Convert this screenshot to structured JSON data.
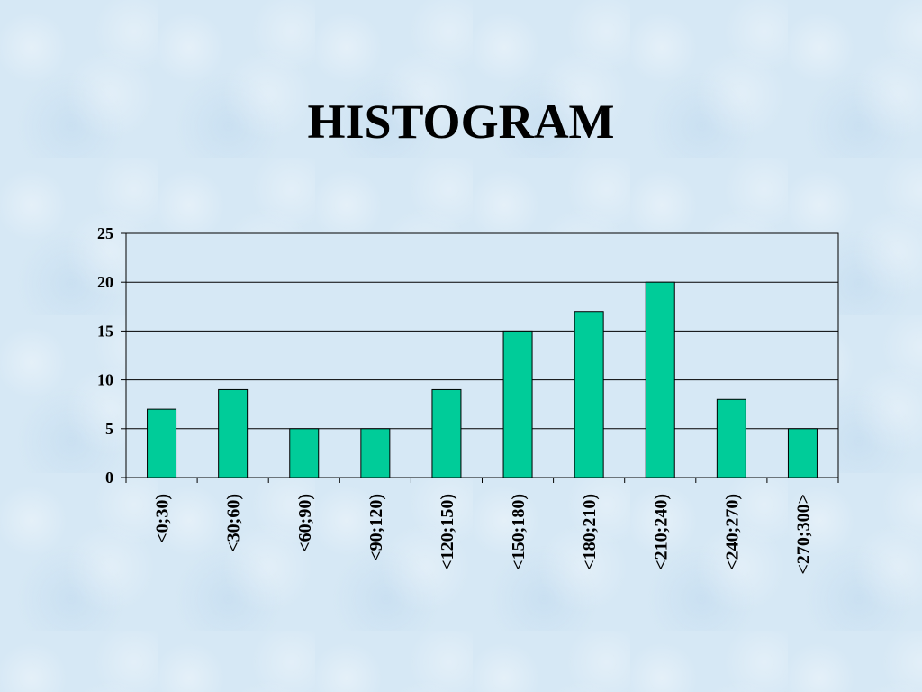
{
  "chart_data": {
    "type": "bar",
    "title": "HISTOGRAM",
    "categories": [
      "<0;30)",
      "<30;60)",
      "<60;90)",
      "<90;120)",
      "<120;150)",
      "<150;180)",
      "<180;210)",
      "<210;240)",
      "<240;270)",
      "<270;300>"
    ],
    "values": [
      7,
      9,
      5,
      5,
      9,
      15,
      17,
      20,
      8,
      5
    ],
    "xlabel": "",
    "ylabel": "",
    "ylim": [
      0,
      25
    ],
    "yticks": [
      "0",
      "5",
      "10",
      "15",
      "20",
      "25"
    ],
    "grid": true,
    "bar_color": "#00cc99",
    "plot_background": "#d6e8f5"
  }
}
